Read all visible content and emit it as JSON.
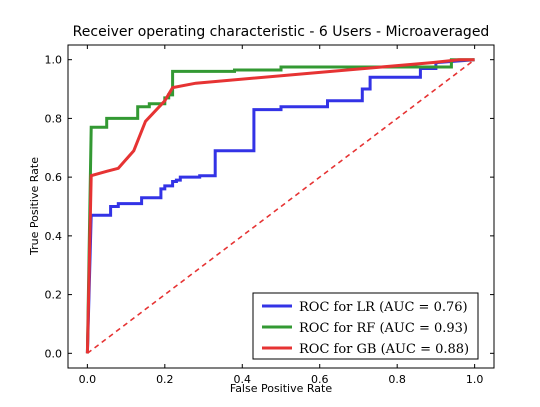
{
  "chart_data": {
    "type": "line",
    "title": "Receiver operating characteristic - 6 Users - Microaveraged",
    "xlabel": "False Positive Rate",
    "ylabel": "True Positive Rate",
    "xlim": [
      -0.05,
      1.05
    ],
    "ylim": [
      -0.05,
      1.05
    ],
    "xticks": [
      "0.0",
      "0.2",
      "0.4",
      "0.6",
      "0.8",
      "1.0"
    ],
    "yticks": [
      "0.0",
      "0.2",
      "0.4",
      "0.6",
      "0.8",
      "1.0"
    ],
    "grid": false,
    "legend_position": "lower-right",
    "series": [
      {
        "name": "ROC for LR (AUC = 0.76)",
        "color": "#3333e6",
        "style": "solid",
        "x": [
          0,
          0.01,
          0.01,
          0.05,
          0.06,
          0.06,
          0.08,
          0.08,
          0.14,
          0.14,
          0.19,
          0.19,
          0.2,
          0.2,
          0.22,
          0.22,
          0.23,
          0.23,
          0.24,
          0.24,
          0.29,
          0.29,
          0.33,
          0.33,
          0.43,
          0.43,
          0.5,
          0.5,
          0.62,
          0.62,
          0.71,
          0.71,
          0.73,
          0.73,
          0.86,
          0.86,
          0.9,
          0.9,
          1.0
        ],
        "y": [
          0,
          0.47,
          0.47,
          0.47,
          0.47,
          0.5,
          0.5,
          0.51,
          0.51,
          0.53,
          0.53,
          0.56,
          0.56,
          0.57,
          0.57,
          0.585,
          0.585,
          0.59,
          0.59,
          0.6,
          0.6,
          0.605,
          0.605,
          0.69,
          0.69,
          0.83,
          0.83,
          0.84,
          0.84,
          0.86,
          0.86,
          0.9,
          0.9,
          0.94,
          0.94,
          0.97,
          0.97,
          0.99,
          1.0
        ]
      },
      {
        "name": "ROC for RF (AUC = 0.93)",
        "color": "#339933",
        "style": "solid",
        "x": [
          0,
          0.01,
          0.01,
          0.05,
          0.05,
          0.13,
          0.13,
          0.16,
          0.16,
          0.2,
          0.2,
          0.21,
          0.21,
          0.22,
          0.22,
          0.38,
          0.38,
          0.5,
          0.5,
          0.88,
          0.88,
          0.94,
          0.94,
          1.0
        ],
        "y": [
          0,
          0.77,
          0.77,
          0.77,
          0.8,
          0.8,
          0.84,
          0.84,
          0.85,
          0.85,
          0.87,
          0.87,
          0.88,
          0.88,
          0.96,
          0.96,
          0.965,
          0.965,
          0.975,
          0.975,
          0.975,
          0.975,
          1.0,
          1.0
        ]
      },
      {
        "name": "ROC for GB (AUC = 0.88)",
        "color": "#e63333",
        "style": "solid",
        "x": [
          0,
          0.01,
          0.01,
          0.05,
          0.05,
          0.08,
          0.08,
          0.12,
          0.12,
          0.15,
          0.15,
          0.2,
          0.2,
          0.22,
          0.22,
          0.28,
          0.28,
          0.63,
          0.63,
          0.89,
          0.89,
          0.96,
          0.96,
          1.0
        ],
        "y": [
          0,
          0.605,
          0.605,
          0.62,
          0.62,
          0.63,
          0.63,
          0.69,
          0.69,
          0.79,
          0.79,
          0.86,
          0.86,
          0.905,
          0.905,
          0.92,
          0.92,
          0.96,
          0.96,
          0.99,
          0.99,
          1.0,
          1.0,
          1.0
        ]
      },
      {
        "color": "#e63333",
        "style": "dashed",
        "x": [
          0,
          1
        ],
        "y": [
          0,
          1
        ]
      }
    ]
  }
}
